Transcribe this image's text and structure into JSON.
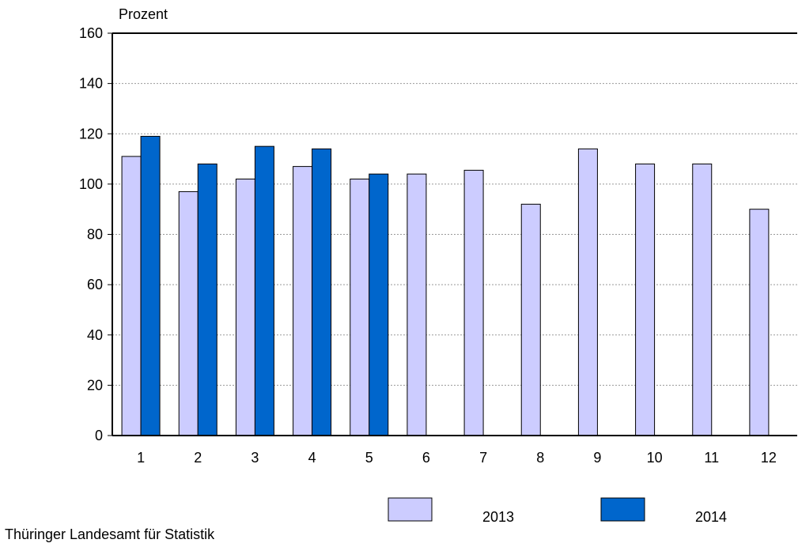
{
  "chart_data": {
    "type": "bar",
    "ylabel": "Prozent",
    "ylim": [
      0,
      160
    ],
    "yticks": [
      0,
      20,
      40,
      60,
      80,
      100,
      120,
      140,
      160
    ],
    "categories": [
      "1",
      "2",
      "3",
      "4",
      "5",
      "6",
      "7",
      "8",
      "9",
      "10",
      "11",
      "12"
    ],
    "series": [
      {
        "name": "2013",
        "color": "#ccccff",
        "values": [
          111,
          97,
          102,
          107,
          102,
          104,
          105.5,
          92,
          114,
          108,
          108,
          90
        ]
      },
      {
        "name": "2014",
        "color": "#0066cc",
        "values": [
          119,
          108,
          115,
          114,
          104,
          null,
          null,
          null,
          null,
          null,
          null,
          null
        ]
      }
    ],
    "grid": true,
    "legend_position": "bottom-right"
  },
  "source": "Thüringer Landesamt für Statistik"
}
